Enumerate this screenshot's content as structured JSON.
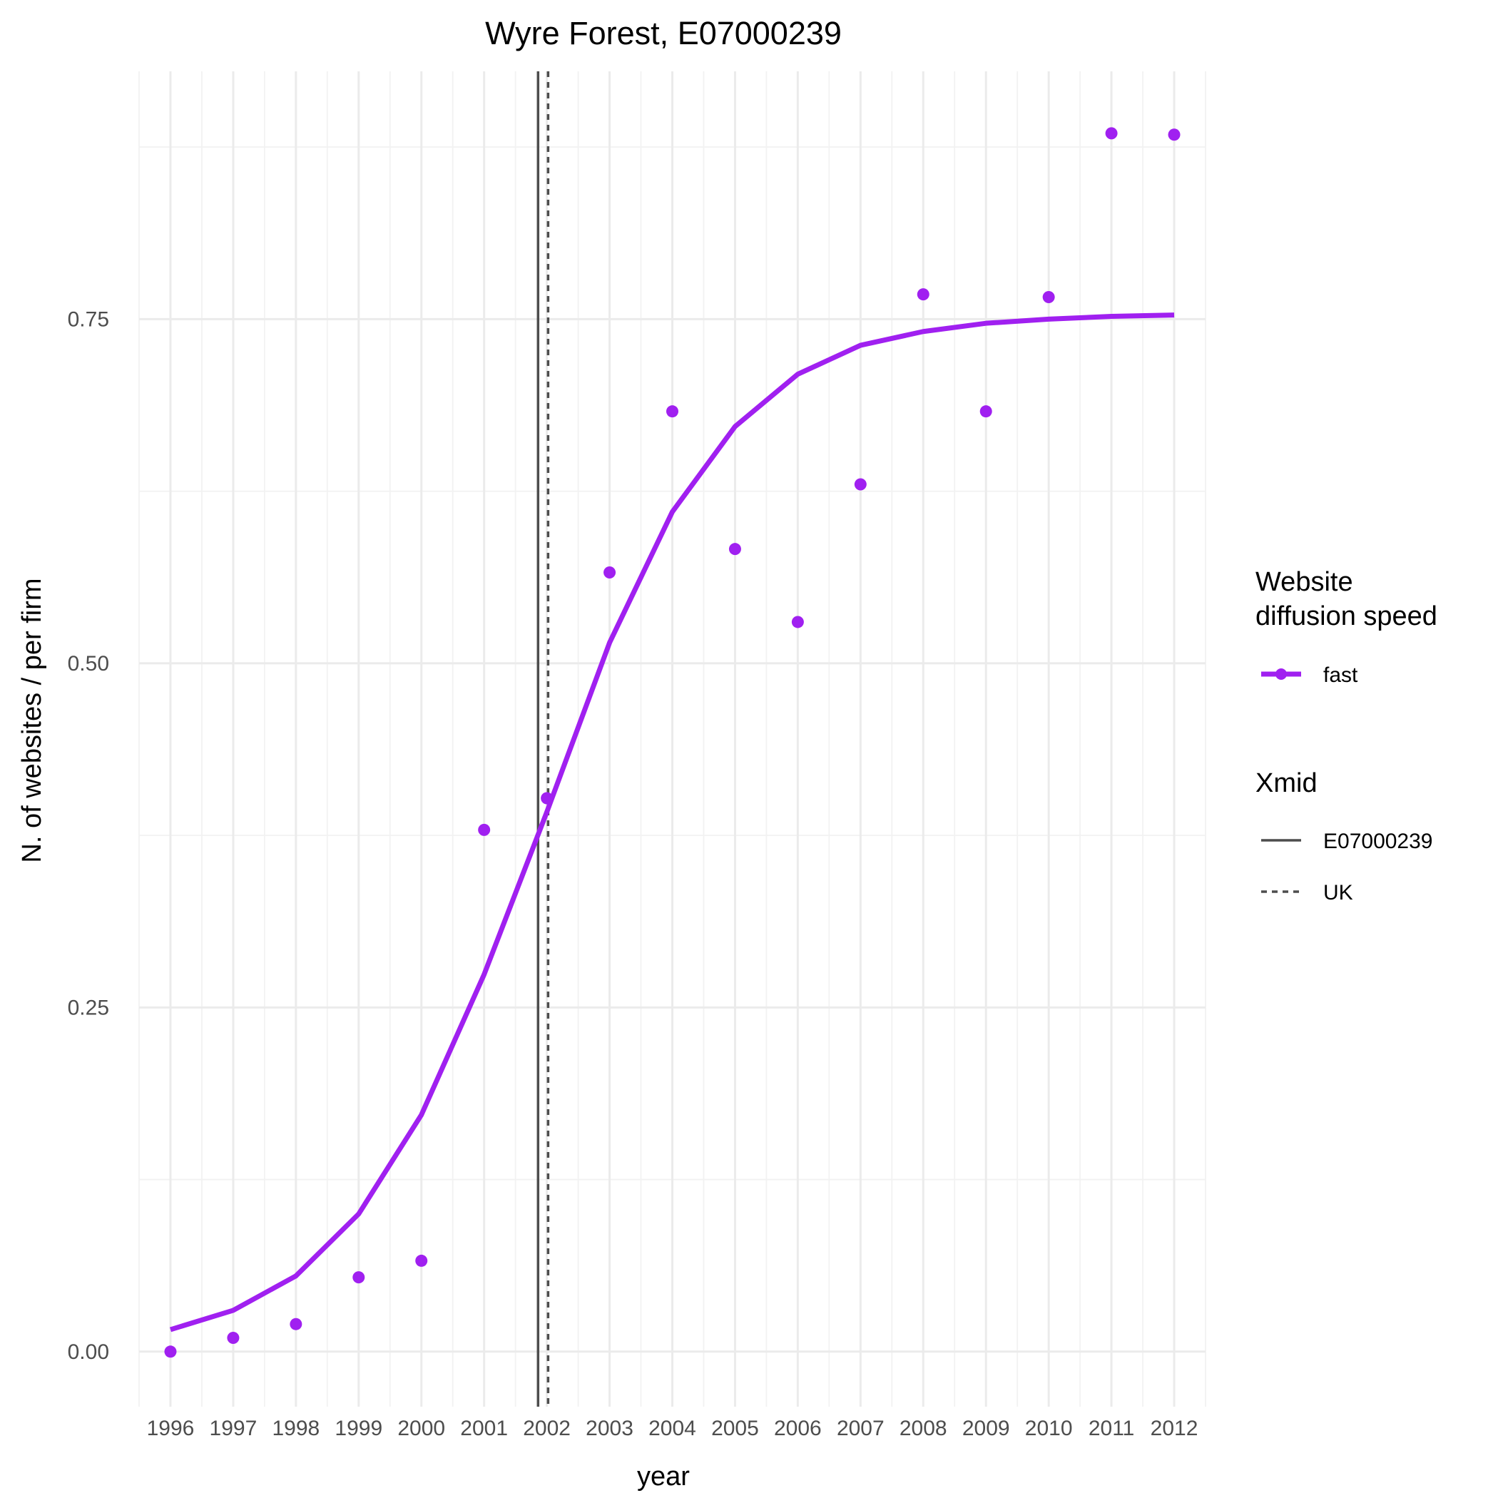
{
  "chart_data": {
    "type": "line",
    "title": "Wyre Forest, E07000239",
    "xlabel": "year",
    "ylabel": "N. of websites / per firm",
    "x": [
      1996,
      1997,
      1998,
      1999,
      2000,
      2001,
      2002,
      2003,
      2004,
      2005,
      2006,
      2007,
      2008,
      2009,
      2010,
      2011,
      2012
    ],
    "x_tick_labels": [
      "1996",
      "1997",
      "1998",
      "1999",
      "2000",
      "2001",
      "2002",
      "2003",
      "2004",
      "2005",
      "2006",
      "2007",
      "2008",
      "2009",
      "2010",
      "2011",
      "2012"
    ],
    "xlim": [
      1995.5,
      2012.5
    ],
    "ylim": [
      -0.04,
      0.93
    ],
    "y_ticks": [
      0.0,
      0.25,
      0.5,
      0.75
    ],
    "y_tick_labels": [
      "0.00",
      "0.25",
      "0.50",
      "0.75"
    ],
    "grid": true,
    "series": [
      {
        "name": "fast",
        "color": "#a020f0",
        "points": [
          0.0,
          0.01,
          0.02,
          0.054,
          0.066,
          0.379,
          0.402,
          0.566,
          0.683,
          0.583,
          0.53,
          0.63,
          0.768,
          0.683,
          0.766,
          0.885,
          0.884
        ],
        "fitted": [
          0.016,
          0.03,
          0.055,
          0.1,
          0.172,
          0.274,
          0.392,
          0.515,
          0.61,
          0.672,
          0.71,
          0.731,
          0.741,
          0.747,
          0.75,
          0.752,
          0.753
        ]
      }
    ],
    "vlines": [
      {
        "name": "E07000239",
        "x": 2001.86,
        "linetype": "solid",
        "color": "#4d4d4d"
      },
      {
        "name": "UK",
        "x": 2002.02,
        "linetype": "dashed",
        "color": "#4d4d4d"
      }
    ],
    "legend": {
      "position": "right",
      "groups": [
        {
          "title_lines": [
            "Website",
            "diffusion speed"
          ],
          "entries": [
            "fast"
          ]
        },
        {
          "title_lines": [
            "Xmid"
          ],
          "entries": [
            "E07000239",
            "UK"
          ]
        }
      ]
    }
  }
}
